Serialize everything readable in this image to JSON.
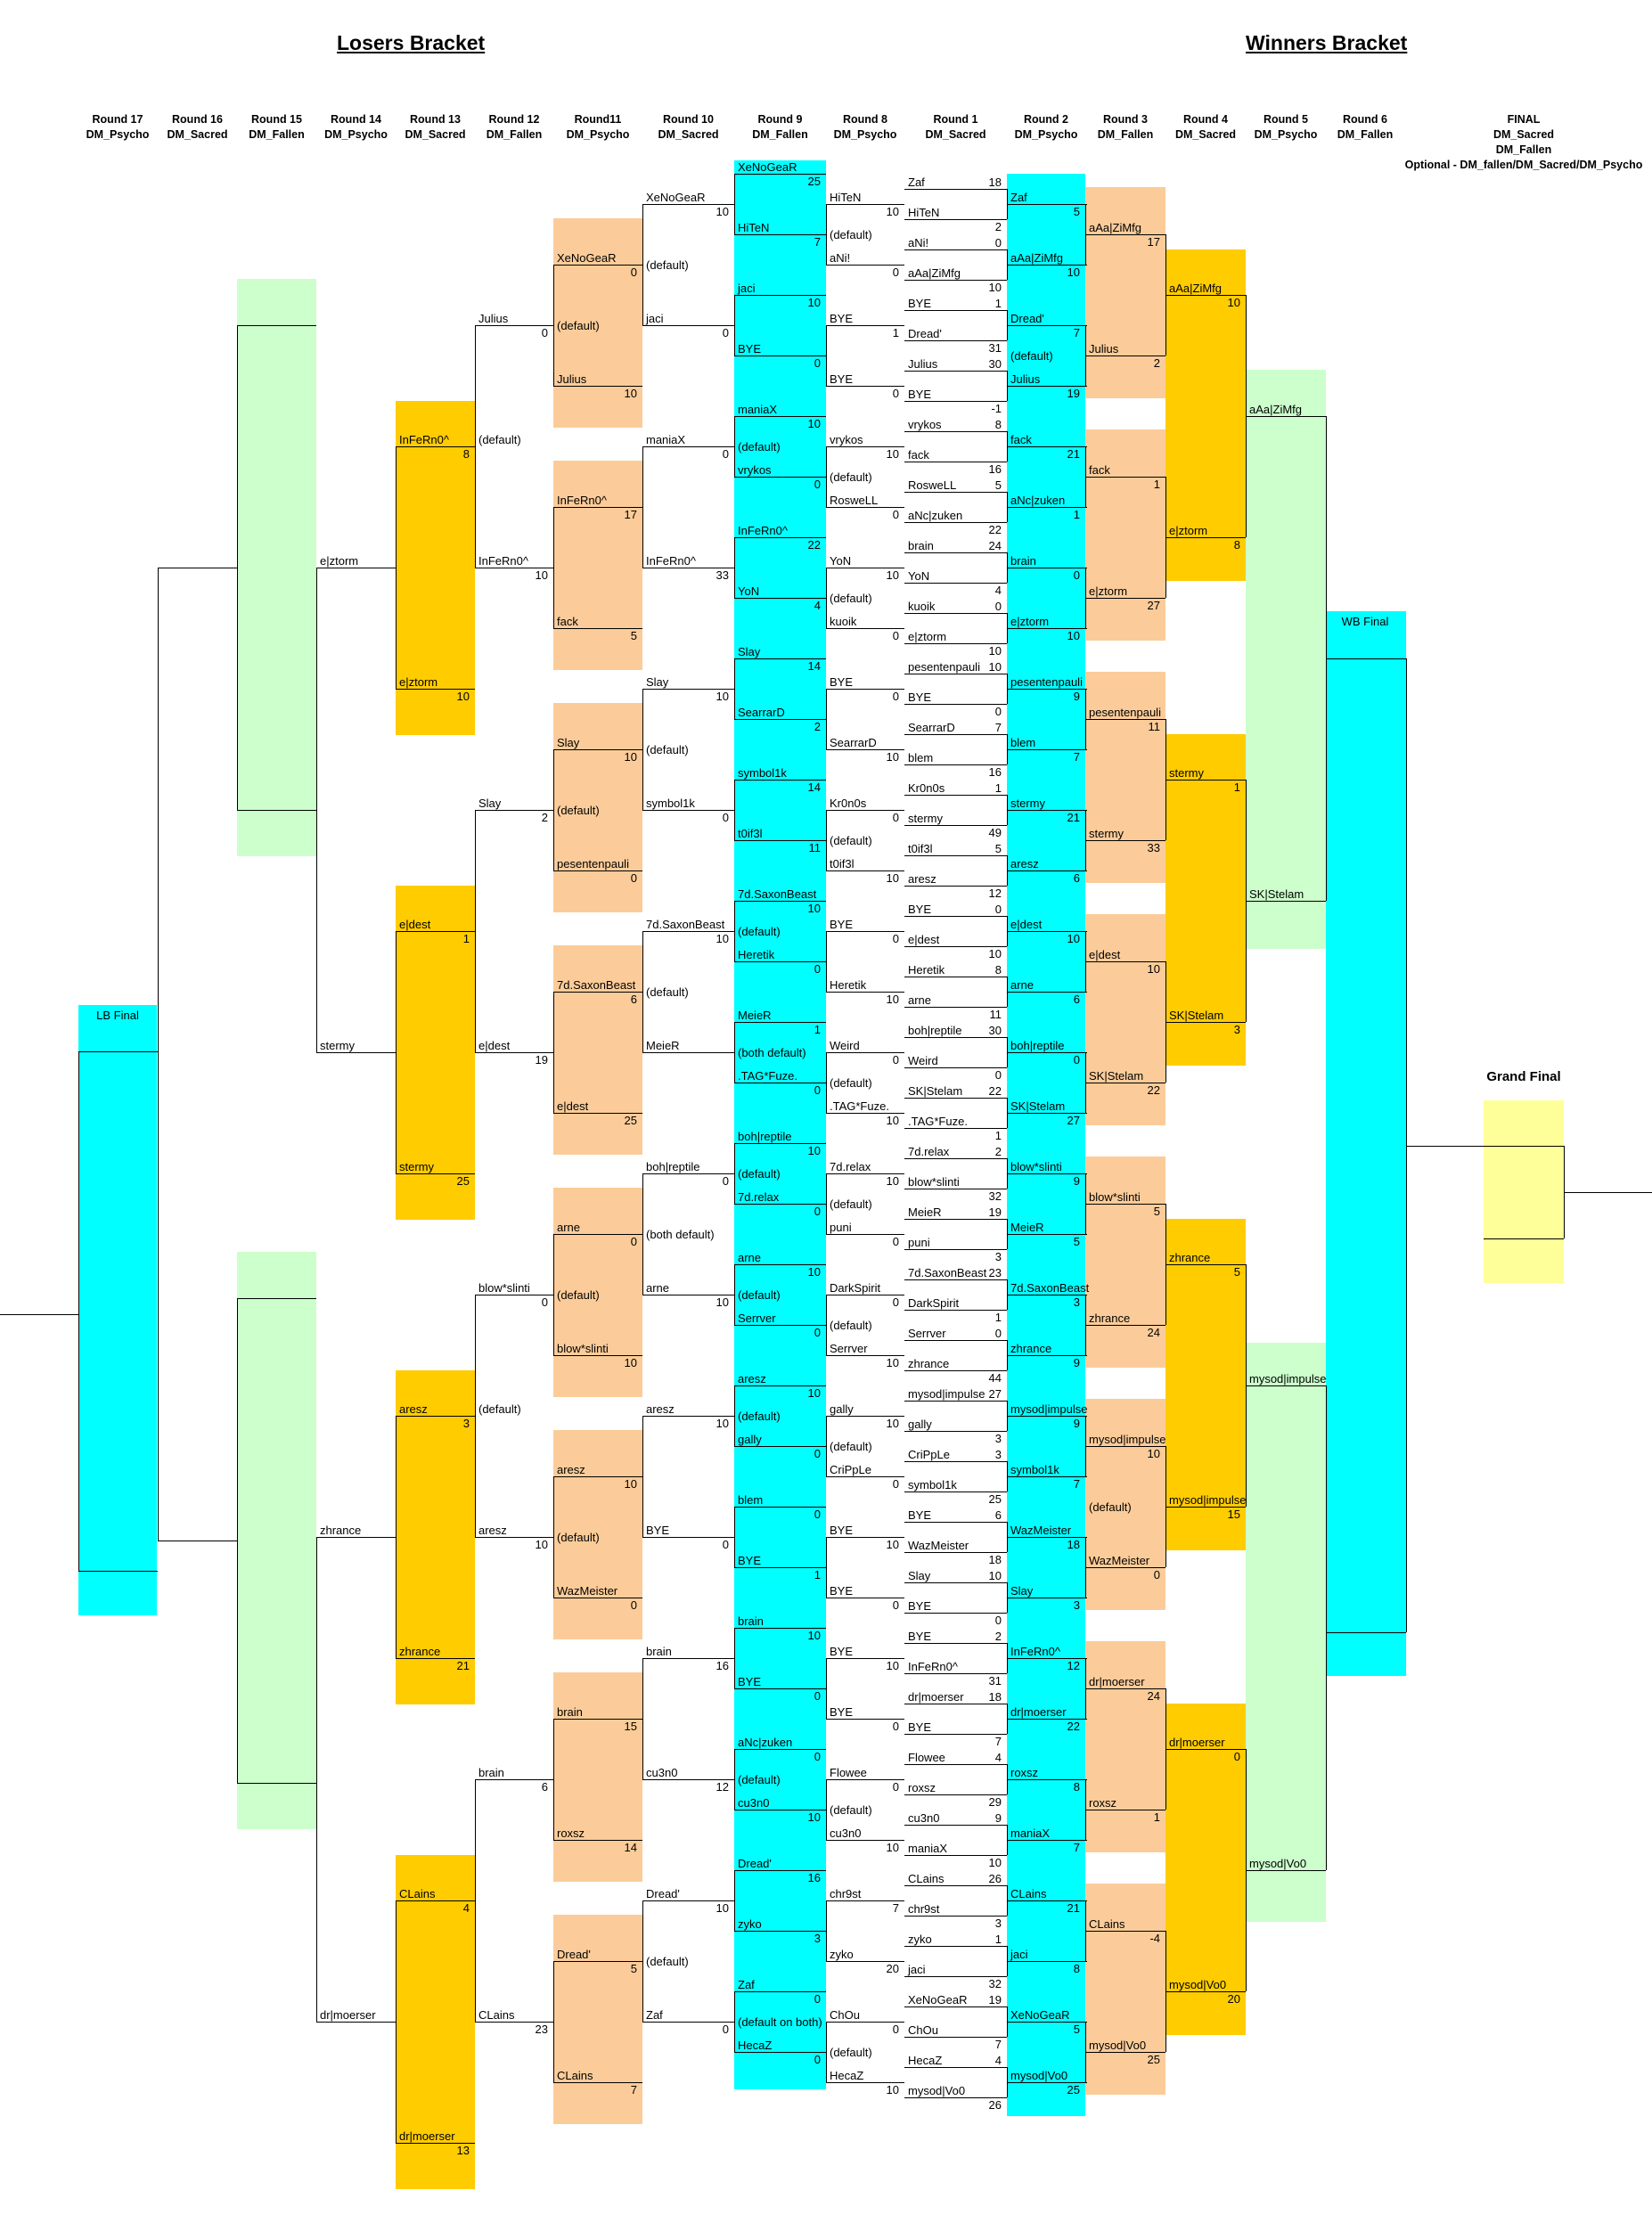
{
  "titles": {
    "losers": "Losers Bracket",
    "winners": "Winners Bracket"
  },
  "labels": {
    "lb_final": "LB Final",
    "wb_final": "WB Final",
    "grand_final": "Grand Final"
  },
  "colors": {
    "cyan": "#00ffff",
    "green": "#ccffcc",
    "orange": "#fbcc99",
    "gold": "#ffcc00",
    "yellow": "#ffff99"
  },
  "headers": [
    {
      "text": "Round 17\nDM_Psycho",
      "col": 0
    },
    {
      "text": "Round 16\nDM_Sacred",
      "col": 1
    },
    {
      "text": "Round 15\nDM_Fallen",
      "col": 2
    },
    {
      "text": "Round 14\nDM_Psycho",
      "col": 3
    },
    {
      "text": "Round 13\nDM_Sacred",
      "col": 4
    },
    {
      "text": "Round 12\nDM_Fallen",
      "col": 5
    },
    {
      "text": "Round11\nDM_Psycho",
      "col": 6
    },
    {
      "text": "Round 10\nDM_Sacred",
      "col": 7
    },
    {
      "text": "Round 9\nDM_Fallen",
      "col": 8
    },
    {
      "text": "Round 8\nDM_Psycho",
      "col": 9
    },
    {
      "text": "Round 1\nDM_Sacred",
      "col": 10
    },
    {
      "text": "Round 2\nDM_Psycho",
      "col": 11
    },
    {
      "text": "Round 3\nDM_Fallen",
      "col": 12
    },
    {
      "text": "Round 4\nDM_Sacred",
      "col": 13
    },
    {
      "text": "Round 5\nDM_Psycho",
      "col": 14
    },
    {
      "text": "Round 6\nDM_Fallen",
      "col": 15
    }
  ],
  "final_header": "FINAL\nDM_Sacred\nDM_Fallen\nOptional - DM_fallen/DM_Sacred/DM_Psycho",
  "r1": [
    [
      "Zaf",
      "18",
      "HiTeN",
      "2"
    ],
    [
      "aNi!",
      "0",
      "aAa|ZiMfg",
      "10"
    ],
    [
      "BYE",
      "1",
      "Dread'",
      "31"
    ],
    [
      "Julius",
      "30",
      "BYE",
      "-1"
    ],
    [
      "vrykos",
      "8",
      "fack",
      "16"
    ],
    [
      "RosweLL",
      "5",
      "aNc|zuken",
      "22"
    ],
    [
      "brain",
      "24",
      "YoN",
      "4"
    ],
    [
      "kuoik",
      "0",
      "e|ztorm",
      "10"
    ],
    [
      "pesentenpauli",
      "10",
      "BYE",
      "0"
    ],
    [
      "SearrarD",
      "7",
      "blem",
      "16"
    ],
    [
      "Kr0n0s",
      "1",
      "stermy",
      "49"
    ],
    [
      "t0if3l",
      "5",
      "aresz",
      "12"
    ],
    [
      "BYE",
      "0",
      "e|dest",
      "10"
    ],
    [
      "Heretik",
      "8",
      "arne",
      "11"
    ],
    [
      "boh|reptile",
      "30",
      "Weird",
      "0"
    ],
    [
      "SK|Stelam",
      "22",
      ".TAG*Fuze.",
      "1"
    ],
    [
      "7d.relax",
      "2",
      "blow*slinti",
      "32"
    ],
    [
      "MeieR",
      "19",
      "puni",
      "3"
    ],
    [
      "7d.SaxonBeast",
      "23",
      "DarkSpirit",
      "1"
    ],
    [
      "Serrver",
      "0",
      "zhrance",
      "44"
    ],
    [
      "mysod|impulse",
      "27",
      "gally",
      "3"
    ],
    [
      "CriPpLe",
      "3",
      "symbol1k",
      "25"
    ],
    [
      "BYE",
      "6",
      "WazMeister",
      "18"
    ],
    [
      "Slay",
      "10",
      "BYE",
      "0"
    ],
    [
      "BYE",
      "2",
      "InFeRn0^",
      "31"
    ],
    [
      "dr|moerser",
      "18",
      "BYE",
      "7"
    ],
    [
      "Flowee",
      "4",
      "roxsz",
      "29"
    ],
    [
      "cu3n0",
      "9",
      "maniaX",
      "10"
    ],
    [
      "CLains",
      "26",
      "chr9st",
      "3"
    ],
    [
      "zyko",
      "1",
      "jaci",
      "32"
    ],
    [
      "XeNoGeaR",
      "19",
      "ChOu",
      "7"
    ],
    [
      "HecaZ",
      "4",
      "mysod|Vo0",
      "26"
    ]
  ],
  "r2": [
    [
      "Zaf",
      "5",
      "aAa|ZiMfg",
      "10"
    ],
    [
      "Dread'",
      "7",
      "Julius",
      "19"
    ],
    [
      "fack",
      "21",
      "aNc|zuken",
      "1"
    ],
    [
      "brain",
      "0",
      "e|ztorm",
      "10"
    ],
    [
      "pesentenpauli",
      "9",
      "blem",
      "7"
    ],
    [
      "stermy",
      "21",
      "aresz",
      "6"
    ],
    [
      "e|dest",
      "10",
      "arne",
      "6"
    ],
    [
      "boh|reptile",
      "0",
      "SK|Stelam",
      "27"
    ],
    [
      "blow*slinti",
      "9",
      "MeieR",
      "5"
    ],
    [
      "7d.SaxonBeast",
      "3",
      "zhrance",
      "9"
    ],
    [
      "mysod|impulse",
      "9",
      "symbol1k",
      "7"
    ],
    [
      "WazMeister",
      "18",
      "Slay",
      "3"
    ],
    [
      "InFeRn0^",
      "12",
      "dr|moerser",
      "22"
    ],
    [
      "roxsz",
      "8",
      "maniaX",
      "7"
    ],
    [
      "CLains",
      "21",
      "jaci",
      "8"
    ],
    [
      "XeNoGeaR",
      "5",
      "mysod|Vo0",
      "25"
    ]
  ],
  "r2mid": [
    "",
    "(default)",
    "",
    "",
    "",
    "",
    "",
    "",
    "",
    "",
    "",
    "",
    "",
    "",
    "",
    ""
  ],
  "r3": [
    [
      "aAa|ZiMfg",
      "17",
      "Julius",
      "2"
    ],
    [
      "fack",
      "1",
      "e|ztorm",
      "27"
    ],
    [
      "pesentenpauli",
      "11",
      "stermy",
      "33"
    ],
    [
      "e|dest",
      "10",
      "SK|Stelam",
      "22"
    ],
    [
      "blow*slinti",
      "5",
      "zhrance",
      "24"
    ],
    [
      "mysod|impulse",
      "10",
      "WazMeister",
      "0"
    ],
    [
      "dr|moerser",
      "24",
      "roxsz",
      "1"
    ],
    [
      "CLains",
      "-4",
      "mysod|Vo0",
      "25"
    ]
  ],
  "r3mid": [
    "",
    "",
    "",
    "",
    "",
    "(default)",
    "",
    ""
  ],
  "r4": [
    [
      "aAa|ZiMfg",
      "10",
      "e|ztorm",
      "8"
    ],
    [
      "stermy",
      "1",
      "SK|Stelam",
      "3"
    ],
    [
      "zhrance",
      "5",
      "mysod|impulse",
      "15"
    ],
    [
      "dr|moerser",
      "0",
      "mysod|Vo0",
      "20"
    ]
  ],
  "r5": [
    [
      "aAa|ZiMfg",
      "",
      "SK|Stelam",
      ""
    ],
    [
      "mysod|impulse",
      "",
      "mysod|Vo0",
      ""
    ]
  ],
  "r8": [
    [
      "HiTeN",
      "10",
      "aNi!",
      "0",
      "(default)"
    ],
    [
      "BYE",
      "1",
      "BYE",
      "0",
      ""
    ],
    [
      "vrykos",
      "10",
      "RosweLL",
      "0",
      "(default)"
    ],
    [
      "YoN",
      "10",
      "kuoik",
      "0",
      "(default)"
    ],
    [
      "BYE",
      "0",
      "SearrarD",
      "10",
      ""
    ],
    [
      "Kr0n0s",
      "0",
      "t0if3l",
      "10",
      "(default)"
    ],
    [
      "BYE",
      "0",
      "Heretik",
      "10",
      ""
    ],
    [
      "Weird",
      "0",
      ".TAG*Fuze.",
      "10",
      "(default)"
    ],
    [
      "7d.relax",
      "10",
      "puni",
      "0",
      "(default)"
    ],
    [
      "DarkSpirit",
      "0",
      "Serrver",
      "10",
      "(default)"
    ],
    [
      "gally",
      "10",
      "CriPpLe",
      "0",
      "(default)"
    ],
    [
      "BYE",
      "10",
      "BYE",
      "0",
      ""
    ],
    [
      "BYE",
      "10",
      "BYE",
      "0",
      ""
    ],
    [
      "Flowee",
      "0",
      "cu3n0",
      "10",
      "(default)"
    ],
    [
      "chr9st",
      "7",
      "zyko",
      "20",
      ""
    ],
    [
      "ChOu",
      "0",
      "HecaZ",
      "10",
      "(default)"
    ]
  ],
  "r9": [
    [
      "XeNoGeaR",
      "25",
      "HiTeN",
      "7",
      ""
    ],
    [
      "jaci",
      "10",
      "BYE",
      "0",
      ""
    ],
    [
      "maniaX",
      "10",
      "vrykos",
      "0",
      "(default)"
    ],
    [
      "InFeRn0^",
      "22",
      "YoN",
      "4",
      ""
    ],
    [
      "Slay",
      "14",
      "SearrarD",
      "2",
      ""
    ],
    [
      "symbol1k",
      "14",
      "t0if3l",
      "11",
      ""
    ],
    [
      "7d.SaxonBeast",
      "10",
      "Heretik",
      "0",
      "(default)"
    ],
    [
      "MeieR",
      "1",
      ".TAG*Fuze.",
      "0",
      "(both default)"
    ],
    [
      "boh|reptile",
      "10",
      "7d.relax",
      "0",
      "(default)"
    ],
    [
      "arne",
      "10",
      "Serrver",
      "0",
      "(default)"
    ],
    [
      "aresz",
      "10",
      "gally",
      "0",
      "(default)"
    ],
    [
      "blem",
      "0",
      "BYE",
      "1",
      ""
    ],
    [
      "brain",
      "10",
      "BYE",
      "0",
      ""
    ],
    [
      "aNc|zuken",
      "0",
      "cu3n0",
      "10",
      "(default)"
    ],
    [
      "Dread'",
      "16",
      "zyko",
      "3",
      ""
    ],
    [
      "Zaf",
      "0",
      "HecaZ",
      "0",
      "(default on both)"
    ]
  ],
  "r10": [
    [
      "XeNoGeaR",
      "10",
      "jaci",
      "0",
      "(default)"
    ],
    [
      "maniaX",
      "0",
      "InFeRn0^",
      "33",
      ""
    ],
    [
      "Slay",
      "10",
      "symbol1k",
      "0",
      "(default)"
    ],
    [
      "7d.SaxonBeast",
      "10",
      "MeieR",
      "",
      "(default)"
    ],
    [
      "boh|reptile",
      "0",
      "arne",
      "10",
      "(both default)"
    ],
    [
      "aresz",
      "10",
      "BYE",
      "0",
      ""
    ],
    [
      "brain",
      "16",
      "cu3n0",
      "12",
      ""
    ],
    [
      "Dread'",
      "10",
      "Zaf",
      "0",
      "(default)"
    ]
  ],
  "r11": [
    [
      "XeNoGeaR",
      "0",
      "Julius",
      "10",
      "(default)"
    ],
    [
      "InFeRn0^",
      "17",
      "fack",
      "5",
      ""
    ],
    [
      "Slay",
      "10",
      "pesentenpauli",
      "0",
      "(default)"
    ],
    [
      "7d.SaxonBeast",
      "6",
      "e|dest",
      "25",
      ""
    ],
    [
      "arne",
      "0",
      "blow*slinti",
      "10",
      "(default)"
    ],
    [
      "aresz",
      "10",
      "WazMeister",
      "0",
      "(default)"
    ],
    [
      "brain",
      "15",
      "roxsz",
      "14",
      ""
    ],
    [
      "Dread'",
      "5",
      "CLains",
      "7",
      ""
    ]
  ],
  "r12": [
    [
      "Julius",
      "0",
      "InFeRn0^",
      "10",
      "(default)"
    ],
    [
      "Slay",
      "2",
      "e|dest",
      "19",
      ""
    ],
    [
      "blow*slinti",
      "0",
      "aresz",
      "10",
      "(default)"
    ],
    [
      "brain",
      "6",
      "CLains",
      "23",
      ""
    ]
  ],
  "r13": [
    [
      "InFeRn0^",
      "8",
      "e|ztorm",
      "10"
    ],
    [
      "e|dest",
      "1",
      "stermy",
      "25"
    ],
    [
      "aresz",
      "3",
      "zhrance",
      "21"
    ],
    [
      "CLains",
      "4",
      "dr|moerser",
      "13"
    ]
  ],
  "r14": [
    [
      "e|ztorm",
      "stermy"
    ],
    [
      "zhrance",
      "dr|moerser"
    ]
  ]
}
